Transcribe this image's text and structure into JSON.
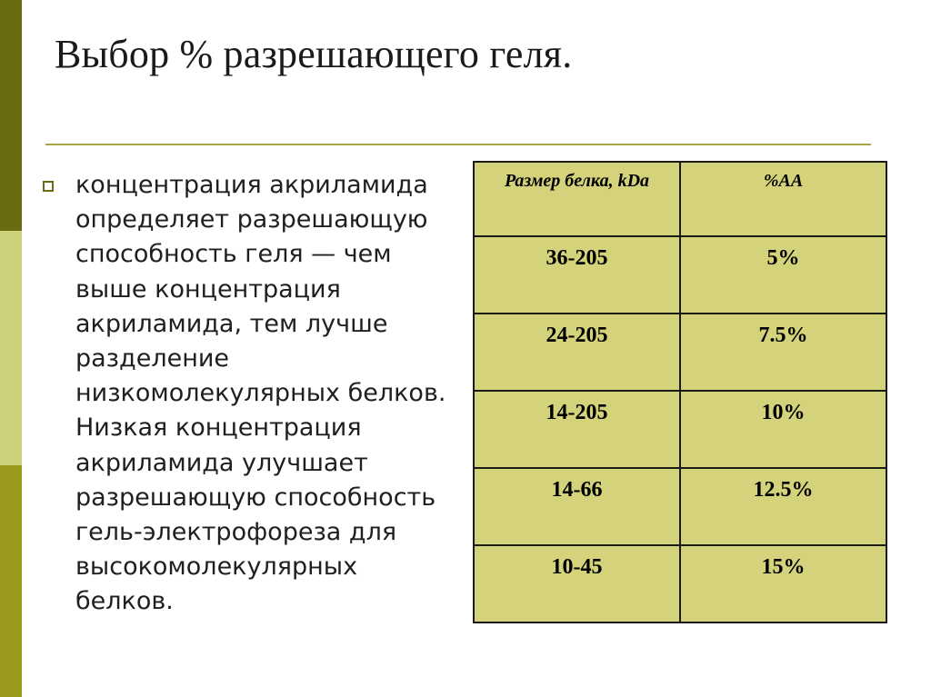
{
  "slide": {
    "title": "Выбор % разрешающего геля.",
    "bullet_text": "концентрация акриламида определяет разрешающую способность геля — чем выше концентрация акриламида, тем лучше разделение низкомолекулярных белков. Низкая концентрация акриламида улучшает разрешающую способность гель-электрофореза для высокомолекулярных белков.",
    "table": {
      "headers": [
        "Размер белка, kDa",
        "%AA"
      ],
      "rows": [
        [
          "36-205",
          "5%"
        ],
        [
          "24-205",
          "7.5%"
        ],
        [
          "14-205",
          "10%"
        ],
        [
          "14-66",
          "12.5%"
        ],
        [
          "10-45",
          "15%"
        ]
      ]
    },
    "colors": {
      "accent_dark": "#6b6b12",
      "accent_light": "#cdd27a",
      "table_fill": "#d4d27a",
      "rule": "#a8a84a"
    }
  }
}
